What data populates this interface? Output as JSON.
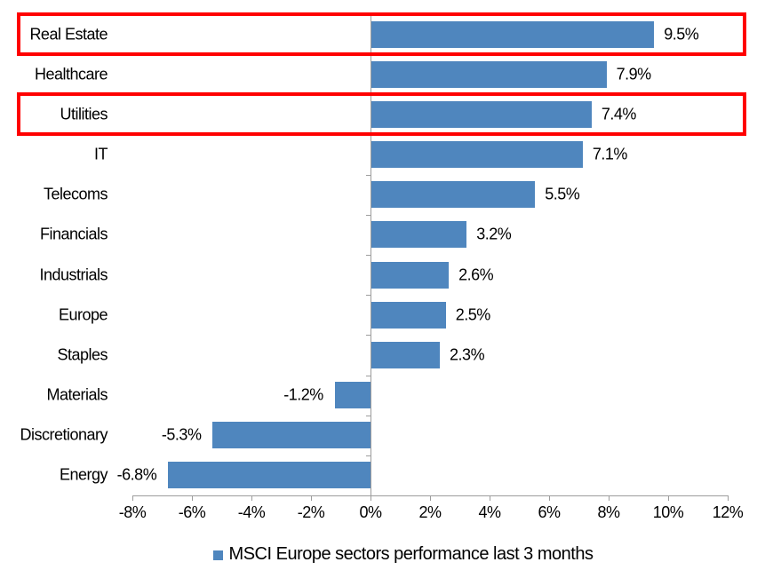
{
  "chart_data": {
    "type": "bar",
    "orientation": "horizontal",
    "title": "",
    "legend": "MSCI Europe sectors performance last 3 months",
    "legend_position": "bottom",
    "categories": [
      "Real Estate",
      "Healthcare",
      "Utilities",
      "IT",
      "Telecoms",
      "Financials",
      "Industrials",
      "Europe",
      "Staples",
      "Materials",
      "Discretionary",
      "Energy"
    ],
    "values": [
      9.5,
      7.9,
      7.4,
      7.1,
      5.5,
      3.2,
      2.6,
      2.5,
      2.3,
      -1.2,
      -5.3,
      -6.8
    ],
    "value_labels": [
      "9.5%",
      "7.9%",
      "7.4%",
      "7.1%",
      "5.5%",
      "3.2%",
      "2.6%",
      "2.5%",
      "2.3%",
      "-1.2%",
      "-5.3%",
      "-6.8%"
    ],
    "highlighted_categories": [
      "Real Estate",
      "Utilities"
    ],
    "x_tick_labels": [
      "-8%",
      "-6%",
      "-4%",
      "-2%",
      "0%",
      "2%",
      "4%",
      "6%",
      "8%",
      "10%",
      "12%"
    ],
    "xlim": [
      -8,
      12
    ],
    "x_tick_step": 2,
    "grid": false,
    "colors": {
      "bar": "#4F86BE",
      "highlight_box": "#FF0000",
      "axis": "#9D9D9D",
      "text": "#000000",
      "background": "#FFFFFF"
    }
  }
}
